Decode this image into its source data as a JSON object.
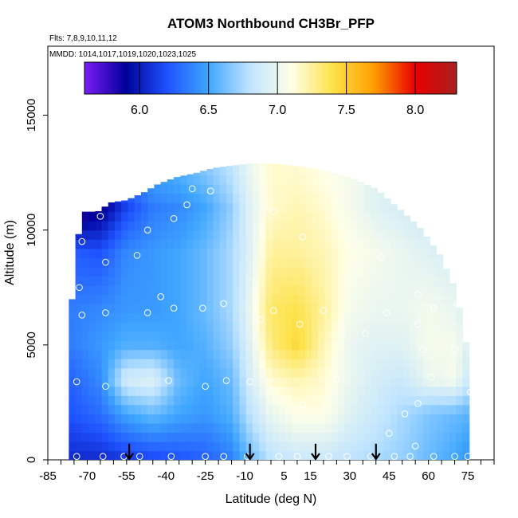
{
  "chart_data": {
    "type": "heatmap",
    "title": "ATOM3 Northbound CH3Br_PFP",
    "subtitle_flights": "Flts: 7,8,9,10,11,12",
    "subtitle_dates": "MMDD: 1014,1017,1019,1020,1023,1025",
    "xlabel": "Latitude (deg N)",
    "ylabel": "Altitude (m)",
    "xlim": [
      -85,
      85
    ],
    "ylim": [
      0,
      18000
    ],
    "xticks": [
      -85,
      -70,
      -55,
      -40,
      -25,
      -10,
      5,
      15,
      30,
      45,
      60,
      75
    ],
    "xtick_labels": [
      "-85",
      "-70",
      "-55",
      "-40",
      "-25",
      "-10",
      "5",
      "15",
      "30",
      "45",
      "60",
      "75"
    ],
    "yticks": [
      0,
      5000,
      10000,
      15000
    ],
    "ytick_labels": [
      "0",
      "5000",
      "10000",
      "15000"
    ],
    "colorbar": {
      "range": [
        5.6,
        8.3
      ],
      "ticks": [
        6.0,
        6.5,
        7.0,
        7.5,
        8.0
      ],
      "tick_labels": [
        "6.0",
        "6.5",
        "7.0",
        "7.5",
        "8.0"
      ],
      "colors": [
        "#7b1cf5",
        "#00009a",
        "#1f52ff",
        "#3fa6ff",
        "#bfe4ff",
        "#ffffe8",
        "#fde24a",
        "#ff9d00",
        "#e80000",
        "#a82020"
      ]
    },
    "envelope": {
      "lat": [
        -77,
        -77,
        -74,
        -71,
        -66,
        -61,
        -55,
        -49,
        -43,
        -36,
        -28,
        -22,
        -15,
        -8,
        0,
        8,
        16,
        24,
        32,
        40,
        48,
        56,
        64,
        70,
        74,
        76,
        76
      ],
      "top_alt": [
        0,
        5200,
        9500,
        10800,
        10800,
        11200,
        11300,
        11600,
        12000,
        12300,
        12500,
        12700,
        12800,
        12900,
        12900,
        12800,
        12700,
        12500,
        12200,
        11800,
        11000,
        10200,
        9000,
        7500,
        5500,
        2500,
        0
      ]
    },
    "field_anchors": {
      "lat": [
        -77,
        -65,
        -55,
        -45,
        -35,
        -25,
        -15,
        -8,
        0,
        10,
        20,
        30,
        40,
        50,
        60,
        70,
        77
      ],
      "alt": [
        0,
        2000,
        3500,
        5000,
        6500,
        9000,
        11000,
        12500
      ],
      "values": [
        [
          6.05,
          6.05,
          6.1,
          6.15,
          6.2,
          6.25,
          6.35,
          6.6,
          6.8,
          6.85,
          6.85,
          6.8,
          6.75,
          6.7,
          6.6,
          6.5,
          6.4
        ],
        [
          6.2,
          6.3,
          6.5,
          6.6,
          6.5,
          6.45,
          6.55,
          6.8,
          7.0,
          7.1,
          7.1,
          6.95,
          6.85,
          6.75,
          6.65,
          6.6,
          6.55
        ],
        [
          6.25,
          6.4,
          6.9,
          6.95,
          6.6,
          6.5,
          6.6,
          6.9,
          7.15,
          7.2,
          7.15,
          7.0,
          6.9,
          6.85,
          7.0,
          7.05,
          6.8
        ],
        [
          6.35,
          6.45,
          6.55,
          6.55,
          6.5,
          6.55,
          6.7,
          6.95,
          7.3,
          7.45,
          7.2,
          7.0,
          6.95,
          6.95,
          7.05,
          7.05,
          6.9
        ],
        [
          6.35,
          6.4,
          6.45,
          6.45,
          6.5,
          6.6,
          6.75,
          7.0,
          7.35,
          7.4,
          7.25,
          7.05,
          7.0,
          7.0,
          7.05,
          7.0,
          6.9
        ],
        [
          6.25,
          6.2,
          6.4,
          6.45,
          6.5,
          6.6,
          6.75,
          6.95,
          7.25,
          7.25,
          7.2,
          7.1,
          7.05,
          7.0,
          6.95,
          6.9,
          6.85
        ],
        [
          5.7,
          5.85,
          6.15,
          6.35,
          6.4,
          6.5,
          6.7,
          6.95,
          7.15,
          7.2,
          7.15,
          7.05,
          6.95,
          6.9,
          6.85,
          6.8,
          6.8
        ],
        [
          6.3,
          6.3,
          6.4,
          6.5,
          6.55,
          6.65,
          6.8,
          7.0,
          7.15,
          7.15,
          7.1,
          7.05,
          6.95,
          6.9,
          6.85,
          6.8,
          6.8
        ]
      ]
    },
    "sample_points": [
      {
        "lat": -74,
        "alt": 150
      },
      {
        "lat": -64,
        "alt": 150
      },
      {
        "lat": -56,
        "alt": 150
      },
      {
        "lat": -50,
        "alt": 150
      },
      {
        "lat": -38,
        "alt": 150
      },
      {
        "lat": -25,
        "alt": 150
      },
      {
        "lat": -18,
        "alt": 150
      },
      {
        "lat": -9,
        "alt": 150
      },
      {
        "lat": 3,
        "alt": 150
      },
      {
        "lat": 10,
        "alt": 150
      },
      {
        "lat": 22,
        "alt": 150
      },
      {
        "lat": 29,
        "alt": 150
      },
      {
        "lat": 38,
        "alt": 150
      },
      {
        "lat": 47,
        "alt": 150
      },
      {
        "lat": 53,
        "alt": 150
      },
      {
        "lat": 62,
        "alt": 150
      },
      {
        "lat": 70,
        "alt": 150
      },
      {
        "lat": 75,
        "alt": 150
      },
      {
        "lat": 45,
        "alt": 1150
      },
      {
        "lat": 55,
        "alt": 600
      },
      {
        "lat": 51,
        "alt": 2000
      },
      {
        "lat": 56,
        "alt": 2450
      },
      {
        "lat": 12,
        "alt": 2400
      },
      {
        "lat": -63,
        "alt": 3200
      },
      {
        "lat": -74,
        "alt": 3400
      },
      {
        "lat": -39,
        "alt": 3450
      },
      {
        "lat": -25,
        "alt": 3200
      },
      {
        "lat": -17,
        "alt": 3450
      },
      {
        "lat": -8,
        "alt": 3400
      },
      {
        "lat": 25,
        "alt": 3500
      },
      {
        "lat": 61,
        "alt": 3600
      },
      {
        "lat": 76,
        "alt": 2950
      },
      {
        "lat": 58,
        "alt": 4800
      },
      {
        "lat": 70,
        "alt": 4800
      },
      {
        "lat": -79,
        "alt": 5400
      },
      {
        "lat": -72,
        "alt": 6300
      },
      {
        "lat": -63,
        "alt": 6400
      },
      {
        "lat": -47,
        "alt": 6400
      },
      {
        "lat": -37,
        "alt": 6600
      },
      {
        "lat": -26,
        "alt": 6600
      },
      {
        "lat": -18,
        "alt": 6800
      },
      {
        "lat": -4,
        "alt": 6100
      },
      {
        "lat": 1,
        "alt": 6500
      },
      {
        "lat": 11,
        "alt": 5900
      },
      {
        "lat": 20,
        "alt": 6500
      },
      {
        "lat": 27,
        "alt": 5600
      },
      {
        "lat": 36,
        "alt": 5500
      },
      {
        "lat": 44,
        "alt": 6400
      },
      {
        "lat": 56,
        "alt": 5900
      },
      {
        "lat": 62,
        "alt": 6600
      },
      {
        "lat": 71,
        "alt": 6800
      },
      {
        "lat": -42,
        "alt": 7100
      },
      {
        "lat": 56,
        "alt": 7200
      },
      {
        "lat": -73,
        "alt": 7500
      },
      {
        "lat": -63,
        "alt": 8600
      },
      {
        "lat": -51,
        "alt": 8900
      },
      {
        "lat": -72,
        "alt": 9500
      },
      {
        "lat": -47,
        "alt": 10000
      },
      {
        "lat": -37,
        "alt": 10500
      },
      {
        "lat": -32,
        "alt": 11100
      },
      {
        "lat": -23,
        "alt": 11700
      },
      {
        "lat": -30,
        "alt": 11800
      },
      {
        "lat": -65,
        "alt": 10600
      },
      {
        "lat": 1,
        "alt": 10800
      },
      {
        "lat": 12,
        "alt": 9700
      },
      {
        "lat": 42,
        "alt": 8800
      }
    ],
    "arrows": [
      {
        "lat": -54,
        "alt": 700
      },
      {
        "lat": -8,
        "alt": 700
      },
      {
        "lat": 17,
        "alt": 700
      },
      {
        "lat": 40,
        "alt": 700
      }
    ]
  }
}
